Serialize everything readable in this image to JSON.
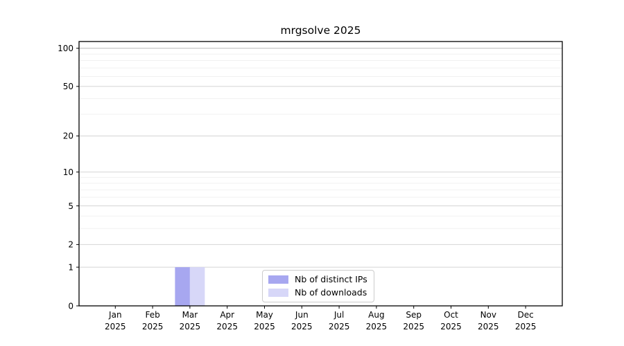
{
  "figure": {
    "background": "#ffffff"
  },
  "chart_data": {
    "type": "bar",
    "title": "mrgsolve 2025",
    "categories": [
      "Jan",
      "Feb",
      "Mar",
      "Apr",
      "May",
      "Jun",
      "Jul",
      "Aug",
      "Sep",
      "Oct",
      "Nov",
      "Dec"
    ],
    "category_year": "2025",
    "series": [
      {
        "name": "Nb of distinct IPs",
        "color": "#a7a7f0",
        "values": [
          0,
          0,
          1,
          0,
          0,
          0,
          0,
          0,
          0,
          0,
          0,
          0
        ]
      },
      {
        "name": "Nb of downloads",
        "color": "#d7d7f8",
        "values": [
          0,
          0,
          1,
          0,
          0,
          0,
          0,
          0,
          0,
          0,
          0,
          0
        ]
      }
    ],
    "y_scale": "log1p",
    "y_major_ticks": [
      0,
      1,
      2,
      5,
      10,
      20,
      50,
      100
    ],
    "y_minor_ticks": [
      3,
      4,
      6,
      7,
      8,
      9,
      30,
      40,
      60,
      70,
      80,
      90
    ],
    "ylim": [
      0,
      113
    ],
    "grid": true,
    "legend_position": "lower center",
    "colors": {
      "axis": "#000000",
      "tick_text": "#000000",
      "grid_major": "#d4d4d4",
      "grid_major_top": "#b8b8b8",
      "grid_minor": "#efefef"
    }
  }
}
